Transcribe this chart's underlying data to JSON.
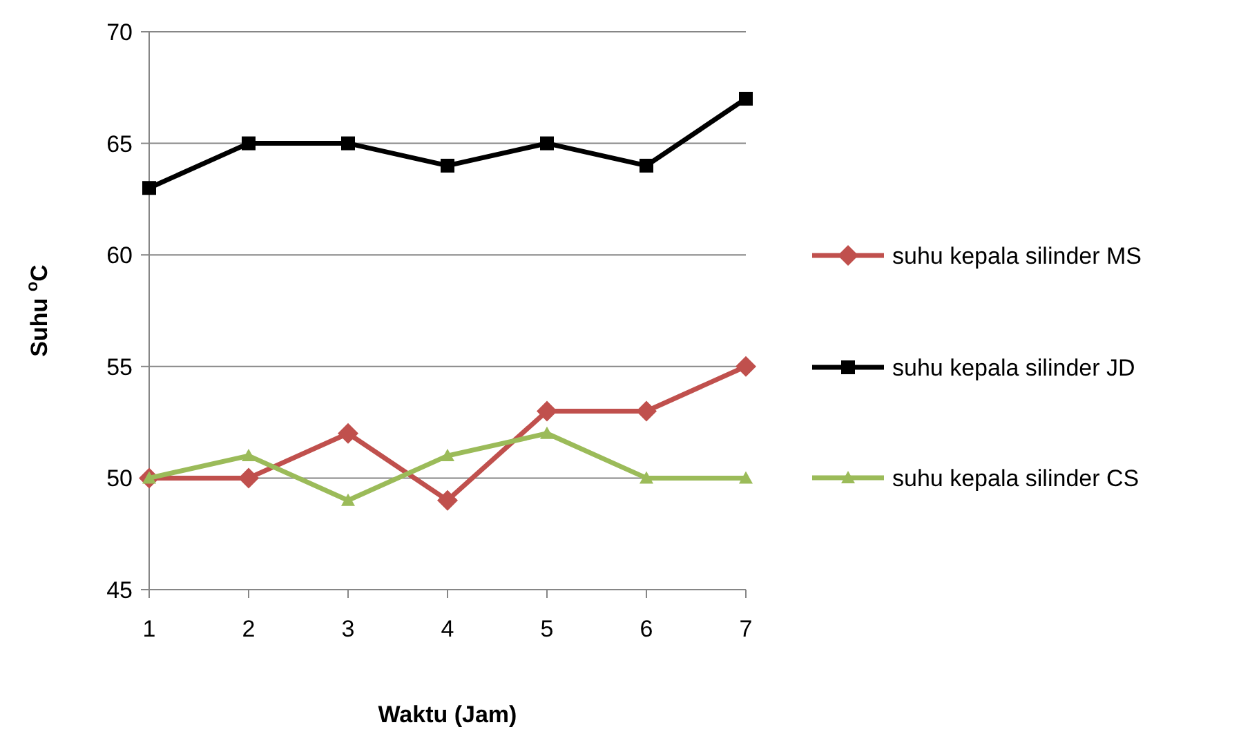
{
  "chart_data": {
    "type": "line",
    "xlabel": "Waktu (Jam)",
    "ylabel": "Suhu $^{o}$C",
    "categories": [
      "1",
      "2",
      "3",
      "4",
      "5",
      "6",
      "7"
    ],
    "ylim": [
      45,
      70
    ],
    "yticks": [
      45,
      50,
      55,
      60,
      65,
      70
    ],
    "grid": "y",
    "legend": "right",
    "line_style": "solid",
    "series": [
      {
        "name": "suhu kepala silinder MS",
        "color": "#c0504d",
        "marker": "diamond",
        "values": [
          50,
          50,
          52,
          49,
          53,
          53,
          55
        ]
      },
      {
        "name": "suhu kepala silinder JD",
        "color": "#000000",
        "marker": "square",
        "values": [
          63,
          65,
          65,
          64,
          65,
          64,
          67
        ]
      },
      {
        "name": "suhu kepala silinder CS",
        "color": "#9bbb59",
        "marker": "triangle",
        "values": [
          50,
          51,
          49,
          51,
          52,
          50,
          50
        ]
      }
    ]
  }
}
